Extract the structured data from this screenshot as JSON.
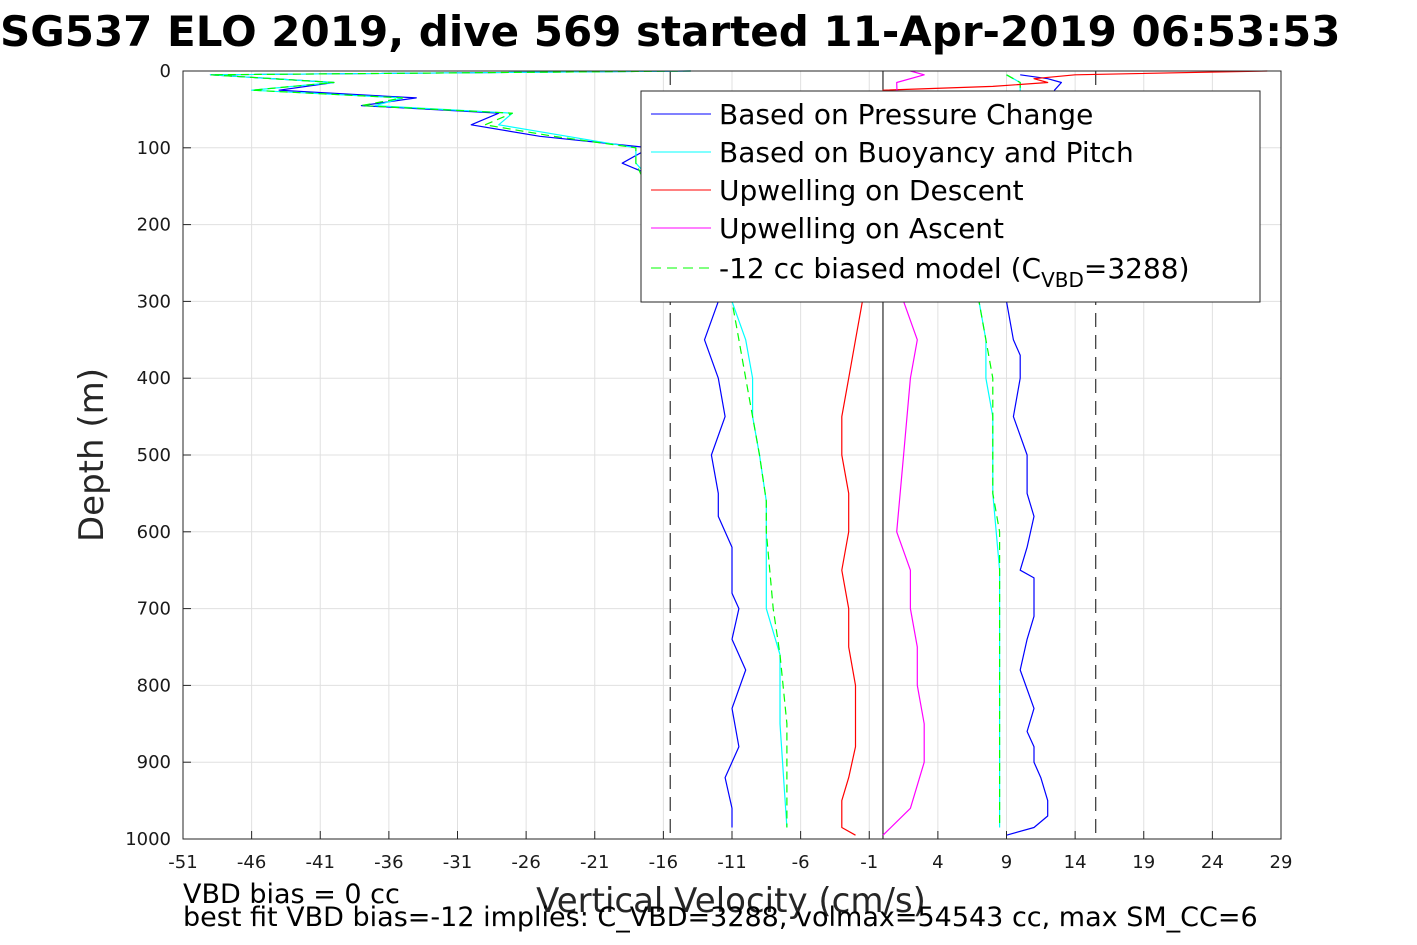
{
  "chart_data": {
    "type": "line",
    "title": "SG537 ELO 2019, dive 569 started 11-Apr-2019 06:53:53",
    "xlabel": "Vertical Velocity (cm/s)",
    "ylabel": "Depth (m)",
    "xlim": [
      -51,
      29
    ],
    "ylim": [
      0,
      1000
    ],
    "y_reversed": true,
    "grid": true,
    "xticks": [
      -51,
      -46,
      -41,
      -36,
      -31,
      -26,
      -21,
      -16,
      -11,
      -6,
      -1,
      4,
      9,
      14,
      19,
      24,
      29
    ],
    "yticks": [
      0,
      100,
      200,
      300,
      400,
      500,
      600,
      700,
      800,
      900,
      1000
    ],
    "legend_placement": "top-right",
    "legend": {
      "pressure": "Based on Pressure Change",
      "buoyancy": "Based on Buoyancy and Pitch",
      "up_descent": "Upwelling on Descent",
      "up_ascent": "Upwelling on Ascent",
      "model_pre": "-12 cc biased model (C",
      "model_sub": "VBD",
      "model_post": "=3288)"
    },
    "colors": {
      "pressure": "#0000ff",
      "buoyancy": "#00ffff",
      "up_descent": "#ff0000",
      "up_ascent": "#ff00ff",
      "model": "#00ff00",
      "reference": "#000000",
      "grid": "#e0e0e0"
    },
    "reference_lines": {
      "zero": 0,
      "dashed": [
        -15.5,
        15.5
      ]
    },
    "series": [
      {
        "key": "pressure",
        "x": [
          -14,
          -49,
          -40,
          -44,
          -34,
          -38,
          -28,
          -30,
          -25,
          -17,
          -19,
          -15,
          -13,
          -12,
          -13,
          -12,
          -11.5,
          -12.5,
          -12,
          -12,
          -11,
          -11,
          -10.5,
          -11,
          -10,
          -11,
          -10.5,
          -11.5,
          -11,
          -11
        ],
        "y": [
          0,
          5,
          15,
          25,
          35,
          45,
          55,
          70,
          85,
          100,
          120,
          150,
          180,
          300,
          350,
          400,
          450,
          500,
          550,
          580,
          620,
          680,
          700,
          740,
          780,
          830,
          880,
          920,
          960,
          985
        ]
      },
      {
        "key": "pressure",
        "x": [
          10,
          12,
          13,
          12.5,
          9,
          9.5,
          10,
          10,
          9.5,
          10.5,
          10.5,
          11,
          10.5,
          10,
          11,
          11,
          11,
          10.5,
          10,
          11,
          10.5,
          11,
          11,
          11.5,
          12,
          12,
          11,
          9
        ],
        "y": [
          5,
          10,
          15,
          25,
          300,
          350,
          370,
          400,
          450,
          500,
          550,
          580,
          620,
          650,
          660,
          700,
          710,
          740,
          780,
          830,
          860,
          880,
          900,
          920,
          950,
          970,
          985,
          995
        ]
      },
      {
        "key": "buoyancy",
        "x": [
          -14,
          -49,
          -40,
          -46,
          -35,
          -37,
          -27,
          -28,
          -23,
          -18,
          -18,
          -17,
          -11,
          -10,
          -9.5,
          -9.5,
          -9,
          -8.5,
          -8.5,
          -8.5,
          -7.5,
          -7.5,
          -7
        ],
        "y": [
          0,
          5,
          15,
          25,
          35,
          45,
          55,
          70,
          85,
          100,
          120,
          140,
          300,
          350,
          400,
          450,
          500,
          560,
          600,
          700,
          760,
          850,
          985
        ]
      },
      {
        "key": "buoyancy",
        "x": [
          9,
          9.5,
          10,
          10,
          7,
          7.5,
          7.5,
          8,
          8,
          8,
          8.5,
          8.5,
          8.5,
          8.5,
          8.5
        ],
        "y": [
          5,
          10,
          15,
          25,
          300,
          350,
          400,
          450,
          500,
          550,
          650,
          700,
          800,
          900,
          985
        ]
      },
      {
        "key": "model",
        "x": [
          -14,
          -49,
          -40,
          -46,
          -35,
          -38,
          -27,
          -29,
          -24,
          -18,
          -18,
          -17.5,
          -11,
          -10.5,
          -10,
          -9.5,
          -9,
          -8.5,
          -8.5,
          -8,
          -7.5,
          -7,
          -7
        ],
        "y": [
          0,
          5,
          15,
          25,
          35,
          45,
          55,
          70,
          85,
          100,
          120,
          140,
          300,
          350,
          400,
          450,
          500,
          560,
          600,
          700,
          760,
          850,
          985
        ]
      },
      {
        "key": "model",
        "x": [
          9,
          9.5,
          10,
          10,
          7,
          7.5,
          8,
          8,
          8,
          8.5,
          8.5,
          8.5,
          8.5,
          8.5
        ],
        "y": [
          5,
          10,
          15,
          25,
          300,
          350,
          400,
          450,
          550,
          600,
          700,
          800,
          900,
          985
        ]
      },
      {
        "key": "up_descent",
        "x": [
          28,
          14,
          11,
          12,
          8,
          0,
          -1.5,
          -2,
          -2.5,
          -3,
          -3,
          -2.5,
          -2.5,
          -3,
          -2.5,
          -2.5,
          -2,
          -2,
          -2,
          -2.5,
          -3,
          -3,
          -2
        ],
        "y": [
          0,
          5,
          10,
          15,
          20,
          25,
          300,
          350,
          400,
          450,
          500,
          550,
          600,
          650,
          700,
          750,
          800,
          850,
          880,
          920,
          950,
          985,
          995
        ]
      },
      {
        "key": "up_ascent",
        "x": [
          2,
          3,
          1,
          1.5,
          2.5,
          2,
          1.5,
          1,
          2,
          2,
          2.5,
          2.5,
          3,
          3,
          2,
          0
        ],
        "y": [
          0,
          5,
          15,
          300,
          350,
          400,
          500,
          600,
          650,
          700,
          750,
          800,
          850,
          900,
          960,
          995
        ]
      }
    ],
    "footer_lines": [
      "VBD bias = 0 cc",
      "best fit VBD bias=-12 implies: C_VBD=3288, volmax=54543 cc, max SM_CC=6"
    ]
  }
}
